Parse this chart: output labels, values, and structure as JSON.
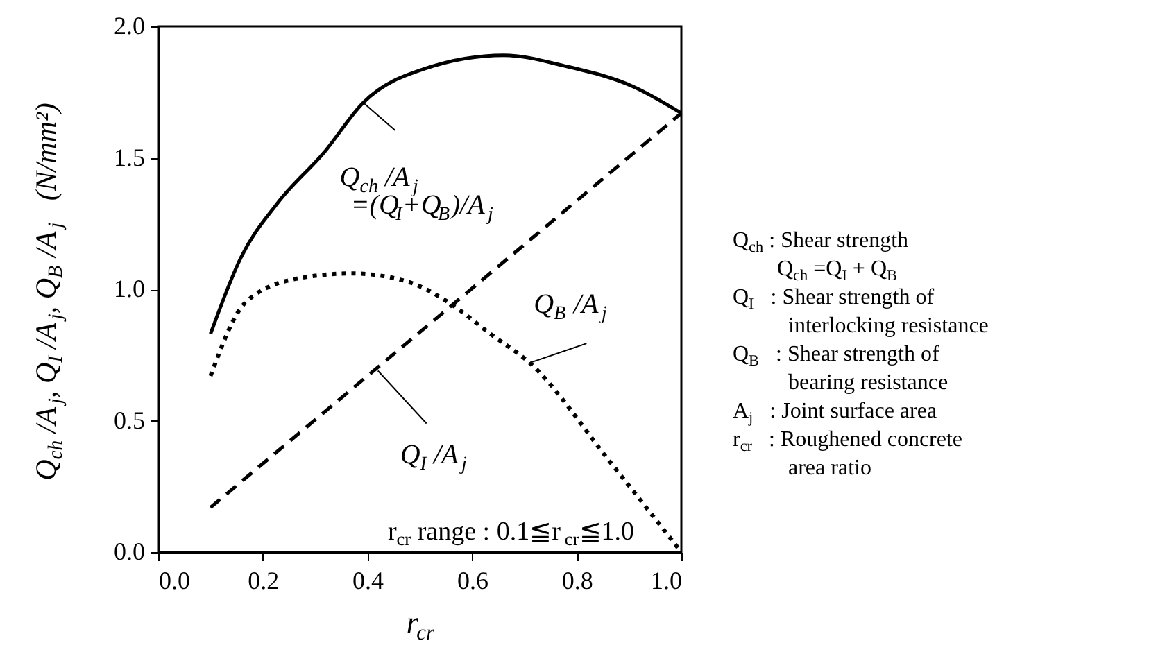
{
  "chart_data": {
    "type": "line",
    "xlabel": "r$_{cr}$",
    "ylabel": "Q$_{ch}$ /A$_{j}$, Q$_{I}$ /A$_{j}$, Q$_{B}$ /A$_{j}$   (N/mm²)",
    "xlim": [
      0.0,
      1.0
    ],
    "ylim": [
      0.0,
      2.0
    ],
    "xticks": [
      {
        "value": 0,
        "label": "0.0"
      },
      {
        "value": 0.2,
        "label": "0.2"
      },
      {
        "value": 0.4,
        "label": "0.4"
      },
      {
        "value": 0.6,
        "label": "0.6"
      },
      {
        "value": 0.8,
        "label": "0.8"
      },
      {
        "value": 1,
        "label": "1.0"
      }
    ],
    "yticks": [
      {
        "value": 0,
        "label": "0.0"
      },
      {
        "value": 0.5,
        "label": "0.5"
      },
      {
        "value": 1,
        "label": "1.0"
      },
      {
        "value": 1.5,
        "label": "1.5"
      },
      {
        "value": 2,
        "label": "2.0"
      }
    ],
    "grid": false,
    "marker": "none",
    "series": [
      {
        "color": "#000000",
        "line_style": "solid",
        "x": [
          0.1,
          0.158,
          0.229,
          0.317,
          0.392,
          0.511,
          0.661,
          0.776,
          0.909,
          1.0
        ],
        "values": [
          0.83,
          1.12,
          1.33,
          1.52,
          1.71,
          1.84,
          1.89,
          1.85,
          1.77,
          1.67
        ]
      },
      {
        "color": "#000000",
        "line_style": "dashed",
        "x": [
          0.1,
          1.0
        ],
        "values": [
          0.17,
          1.67
        ]
      },
      {
        "color": "#000000",
        "line_style": "dotted",
        "x": [
          0.1,
          0.167,
          0.264,
          0.37,
          0.475,
          0.555,
          0.635,
          0.71,
          0.865,
          1.0
        ],
        "values": [
          0.67,
          0.95,
          1.04,
          1.06,
          1.03,
          0.95,
          0.83,
          0.72,
          0.34,
          0.0
        ]
      }
    ],
    "annotations": [
      {
        "text": "Q$_{ch}$ /A$_{j}$",
        "x": 0.392,
        "y": 1.71
      },
      {
        "text": "Q$_{B}$ /A$_{j}$",
        "x": 0.71,
        "y": 0.72
      },
      {
        "text": "Q$_{I}$ /A$_{j}$",
        "x": 0.42,
        "y": 0.69
      },
      "r$_{cr}$ range : 0.1≦r$_{cr}$≦1.0",
      "=(Q$_{I}$+Q$_{B}$)/A$_{j}$",
      "Q$_{ch}$ :   Shear strength",
      "        Q$_{ch}$ =Q$_{I}$ + Q$_{B}$",
      "Q$_{I}$   :   Shear strength of",
      "          interlocking resistance",
      "Q$_{B}$   :   Shear strength of",
      "          bearing resistance",
      "A$_{j}$   :   Joint surface area",
      "r$_{cr}$   :   Roughened concrete",
      "          area ratio"
    ]
  }
}
